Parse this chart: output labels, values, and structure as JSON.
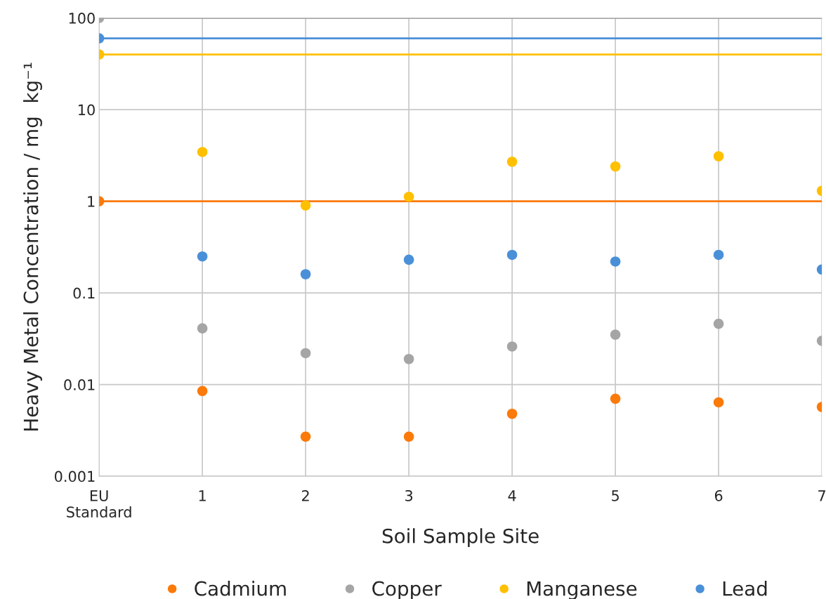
{
  "chart_data": {
    "type": "scatter",
    "xlabel": "Soil Sample Site",
    "ylabel": "Heavy Metal Concentration / mg  kg⁻¹",
    "categories": [
      "EU\nStandard",
      "1",
      "2",
      "3",
      "4",
      "5",
      "6",
      "7"
    ],
    "series": [
      {
        "name": "Cadmium",
        "color": "#fb7a0a",
        "values": [
          1,
          0.0085,
          0.0027,
          0.0027,
          0.0048,
          0.007,
          0.0064,
          0.0057
        ]
      },
      {
        "name": "Copper",
        "color": "#a5a5a5",
        "values": [
          100,
          0.041,
          0.022,
          0.019,
          0.026,
          0.035,
          0.046,
          0.03
        ]
      },
      {
        "name": "Manganese",
        "color": "#ffc000",
        "values": [
          40,
          3.45,
          0.9,
          1.12,
          2.7,
          2.4,
          3.1,
          1.3
        ]
      },
      {
        "name": "Lead",
        "color": "#4a90d9",
        "values": [
          60,
          0.25,
          0.16,
          0.23,
          0.26,
          0.22,
          0.26,
          0.18
        ]
      }
    ],
    "ref_lines": [
      {
        "axis": "y",
        "value": 1,
        "color": "#fb7a0a"
      },
      {
        "axis": "y",
        "value": 100,
        "color": "#a5a5a5"
      },
      {
        "axis": "y",
        "value": 40,
        "color": "#ffc000"
      },
      {
        "axis": "y",
        "value": 60,
        "color": "#4a90d9"
      }
    ],
    "log": "y",
    "ylim": [
      0.001,
      100
    ],
    "yticks": [
      0.001,
      0.01,
      0.1,
      1,
      10,
      100
    ],
    "grid": true,
    "legend": "bottom",
    "marker": "circle"
  }
}
